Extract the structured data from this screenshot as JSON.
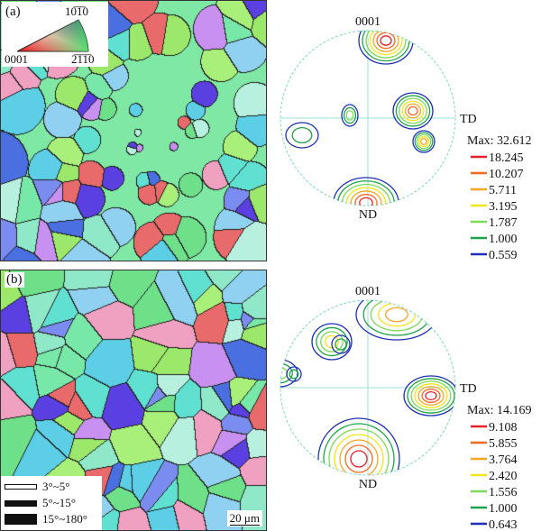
{
  "panels": [
    {
      "label": "(a)",
      "ipf_key": {
        "top": "10̅1̅0",
        "left": "0001",
        "right": "2̅1̅1̅0"
      },
      "pole_figure": {
        "pole": "0001",
        "x_axis": "TD",
        "y_axis": "ND",
        "max": "Max: 32.612",
        "levels": [
          {
            "value": "18.245",
            "color": "#e8202a"
          },
          {
            "value": "10.207",
            "color": "#f26a22"
          },
          {
            "value": "5.711",
            "color": "#f5a623"
          },
          {
            "value": "3.195",
            "color": "#f2e51c"
          },
          {
            "value": "1.787",
            "color": "#7ed957"
          },
          {
            "value": "1.000",
            "color": "#1fa34a"
          },
          {
            "value": "0.559",
            "color": "#1f2fb5"
          }
        ]
      }
    },
    {
      "label": "(b)",
      "grain_boundaries": [
        "3°~5°",
        "5°~15°",
        "15°~180°"
      ],
      "scale_bar": "20 μm",
      "pole_figure": {
        "pole": "0001",
        "x_axis": "TD",
        "y_axis": "ND",
        "max": "Max: 14.169",
        "levels": [
          {
            "value": "9.108",
            "color": "#e8202a"
          },
          {
            "value": "5.855",
            "color": "#f26a22"
          },
          {
            "value": "3.764",
            "color": "#f5a623"
          },
          {
            "value": "2.420",
            "color": "#f2e51c"
          },
          {
            "value": "1.556",
            "color": "#7ed957"
          },
          {
            "value": "1.000",
            "color": "#1fa34a"
          },
          {
            "value": "0.643",
            "color": "#1f2fb5"
          }
        ]
      }
    }
  ]
}
